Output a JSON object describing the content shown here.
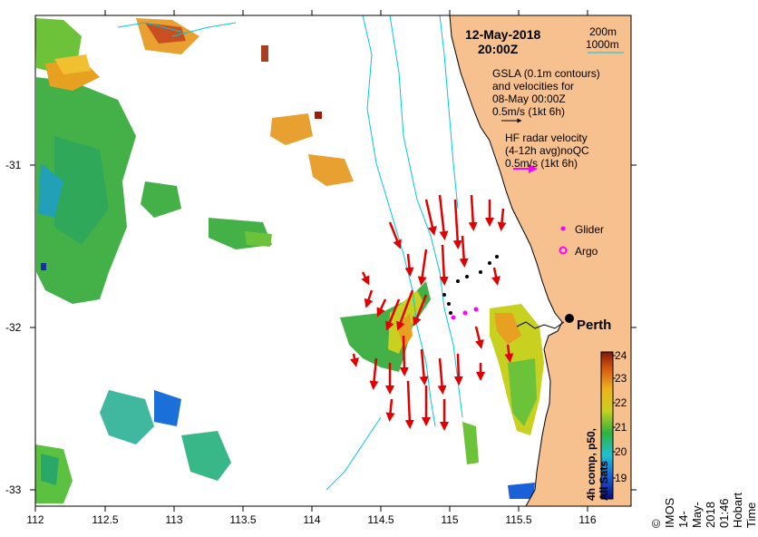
{
  "map": {
    "title_date": "12-May-2018",
    "title_time": "20:00Z",
    "depth_contours": [
      "200m",
      "1000m"
    ],
    "gsla_lines": [
      "GSLA (0.1m contours)",
      "and velocities for",
      "08-May 00:00Z",
      "0.5m/s (1kt 6h)"
    ],
    "hf_lines": [
      "HF radar velocity",
      "(4-12h avg)noQC",
      "0.5m/s (1kt 6h)"
    ],
    "legend_glider": "Glider",
    "legend_argo": "Argo",
    "city": "Perth",
    "x_ticks": [
      "112",
      "112.5",
      "113",
      "113.5",
      "114",
      "114.5",
      "115",
      "115.5",
      "116"
    ],
    "y_ticks": [
      "-31",
      "-32",
      "-33"
    ],
    "colorbar_ticks": [
      "24",
      "23",
      "22",
      "21",
      "20",
      "19"
    ],
    "colorbar_label": "4h comp, p50, All Sats",
    "credit": "©  IMOS 14-May-2018 01:46 Hobart Time"
  },
  "colors": {
    "land": "#f7c08f",
    "contour": "#00c8dc",
    "arrow": "#e00000",
    "hf": "#ff00ff"
  }
}
